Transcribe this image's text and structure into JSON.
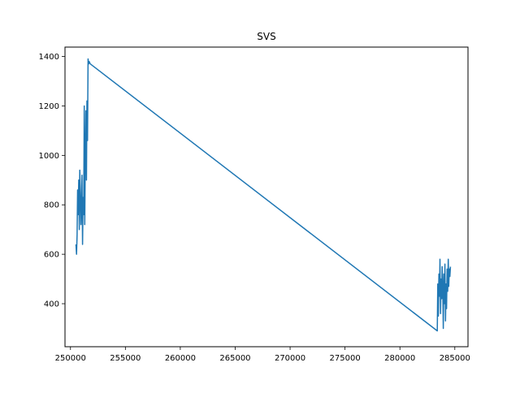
{
  "chart_data": {
    "type": "line",
    "title": "SVS",
    "xlabel": "",
    "ylabel": "",
    "xlim": [
      249500,
      286200
    ],
    "ylim": [
      226,
      1438
    ],
    "xticks": [
      250000,
      255000,
      260000,
      265000,
      270000,
      275000,
      280000,
      285000
    ],
    "xtick_labels": [
      "250000",
      "255000",
      "260000",
      "265000",
      "270000",
      "275000",
      "280000",
      "285000"
    ],
    "yticks": [
      400,
      600,
      800,
      1000,
      1200,
      1400
    ],
    "ytick_labels": [
      "400",
      "600",
      "800",
      "1000",
      "1200",
      "1400"
    ],
    "grid": false,
    "legend": "none",
    "series": [
      {
        "color": "#1f77b4",
        "x": [
          250500,
          250550,
          250600,
          250650,
          250700,
          250750,
          250800,
          250850,
          250900,
          250950,
          251000,
          251050,
          251100,
          251150,
          251200,
          251250,
          251300,
          251350,
          251400,
          251450,
          251500,
          251550,
          251600,
          251650,
          251700,
          251750,
          251800,
          283400,
          283450,
          283500,
          283550,
          283600,
          283650,
          283700,
          283750,
          283800,
          283850,
          283900,
          283950,
          284000,
          284050,
          284100,
          284150,
          284200,
          284250,
          284300,
          284350,
          284400,
          284450,
          284500,
          284550,
          284600
        ],
        "y": [
          640,
          600,
          680,
          860,
          760,
          900,
          700,
          940,
          850,
          720,
          800,
          920,
          640,
          830,
          760,
          1200,
          720,
          1000,
          1180,
          900,
          1220,
          1060,
          1390,
          1370,
          1380,
          1375,
          1370,
          290,
          480,
          350,
          520,
          430,
          580,
          360,
          500,
          420,
          550,
          470,
          300,
          520,
          400,
          560,
          330,
          480,
          380,
          540,
          450,
          580,
          470,
          540,
          510,
          550
        ]
      }
    ]
  }
}
